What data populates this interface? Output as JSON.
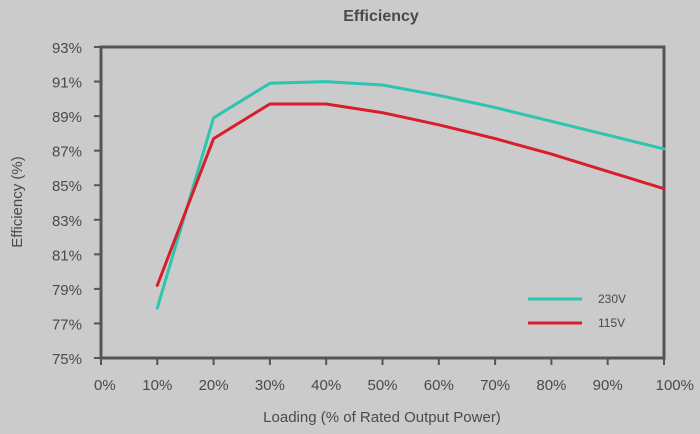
{
  "chart_data": {
    "type": "line",
    "title": "Efficiency",
    "xlabel": "Loading (% of Rated Output Power)",
    "ylabel": "Efficiency (%)",
    "x": [
      10,
      20,
      30,
      40,
      50,
      60,
      70,
      80,
      90,
      100
    ],
    "x_tick_labels": [
      "0%",
      "10%",
      "20%",
      "30%",
      "40%",
      "50%",
      "60%",
      "70%",
      "80%",
      "90%",
      "100%"
    ],
    "y_tick_labels": [
      "93%",
      "91%",
      "89%",
      "87%",
      "85%",
      "83%",
      "81%",
      "79%",
      "77%",
      "75%"
    ],
    "xlim": [
      0,
      100
    ],
    "ylim": [
      75,
      93
    ],
    "grid": false,
    "legend_position": "bottom-right",
    "series": [
      {
        "name": "230V",
        "color": "#2ec4b0",
        "values": [
          77.9,
          88.9,
          90.9,
          91.0,
          90.8,
          90.2,
          89.5,
          88.7,
          87.9,
          87.1
        ]
      },
      {
        "name": "115V",
        "color": "#d81e2a",
        "values": [
          79.2,
          87.7,
          89.7,
          89.7,
          89.2,
          88.5,
          87.7,
          86.8,
          85.8,
          84.8
        ]
      }
    ],
    "axis_color": "#555555"
  }
}
